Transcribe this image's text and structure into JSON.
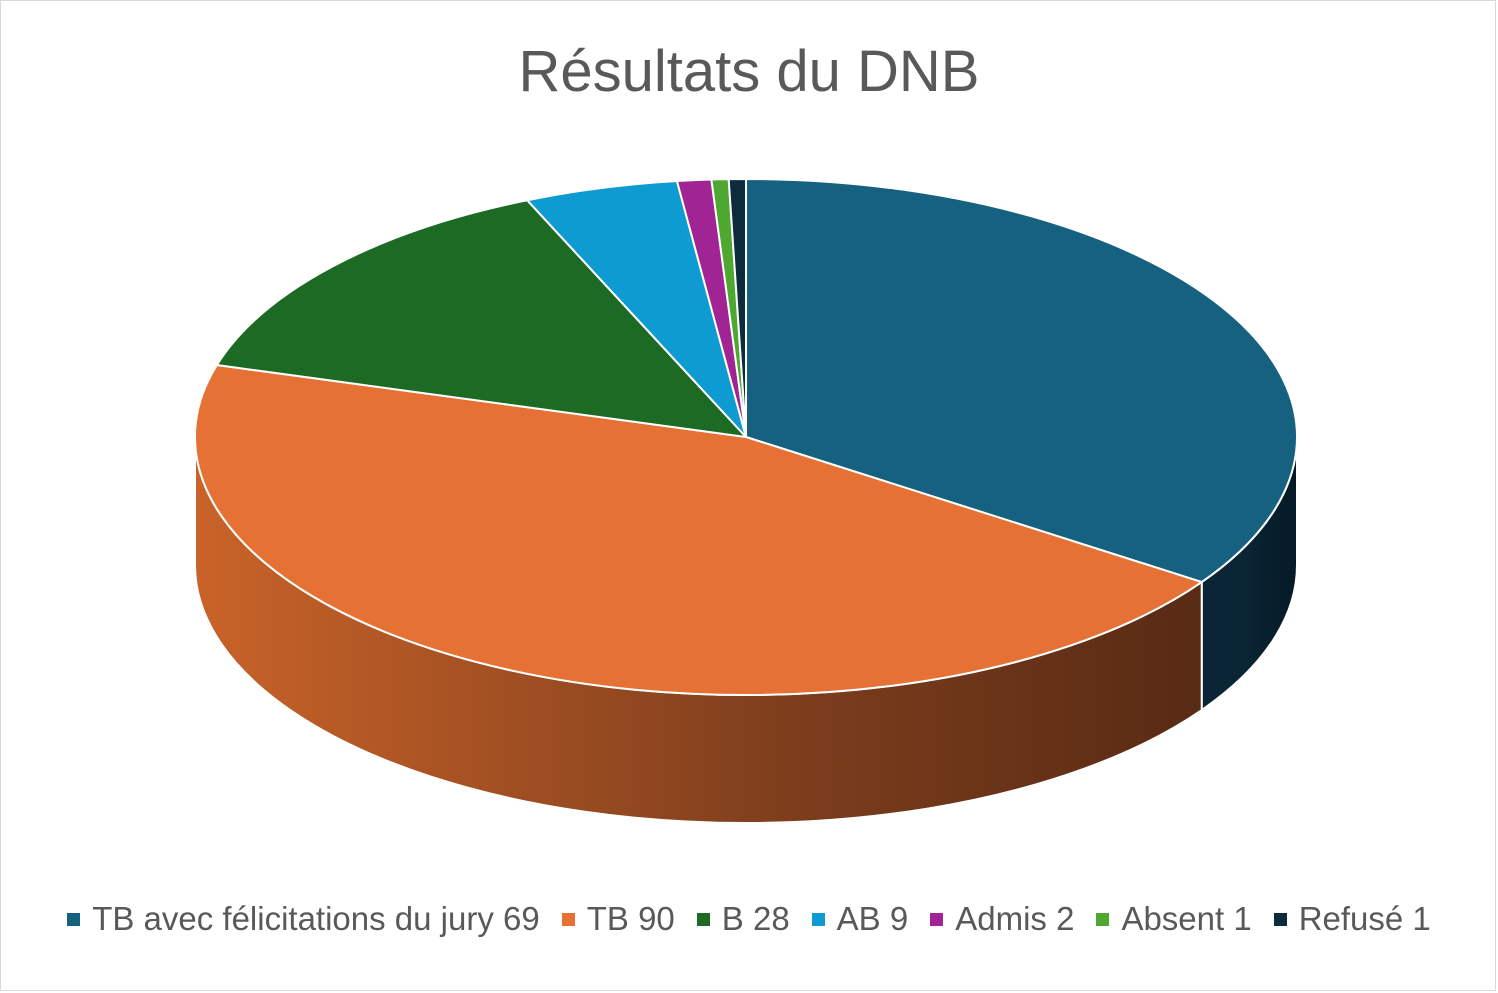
{
  "chart_data": {
    "type": "pie",
    "title": "Résultats du DNB",
    "three_d": true,
    "legend_position": "bottom",
    "start_angle_deg": 0,
    "direction": "clockwise",
    "categories": [
      "TB avec félicitations du jury 69",
      "TB  90",
      "B 28",
      "AB 9",
      "Admis 2",
      "Absent 1",
      "Refusé 1"
    ],
    "values": [
      69,
      90,
      28,
      9,
      2,
      1,
      1
    ],
    "colors": [
      "#166080",
      "#E57234",
      "#1C6A24",
      "#0E9BD2",
      "#A12494",
      "#4EA72E",
      "#0C2C3E"
    ]
  }
}
